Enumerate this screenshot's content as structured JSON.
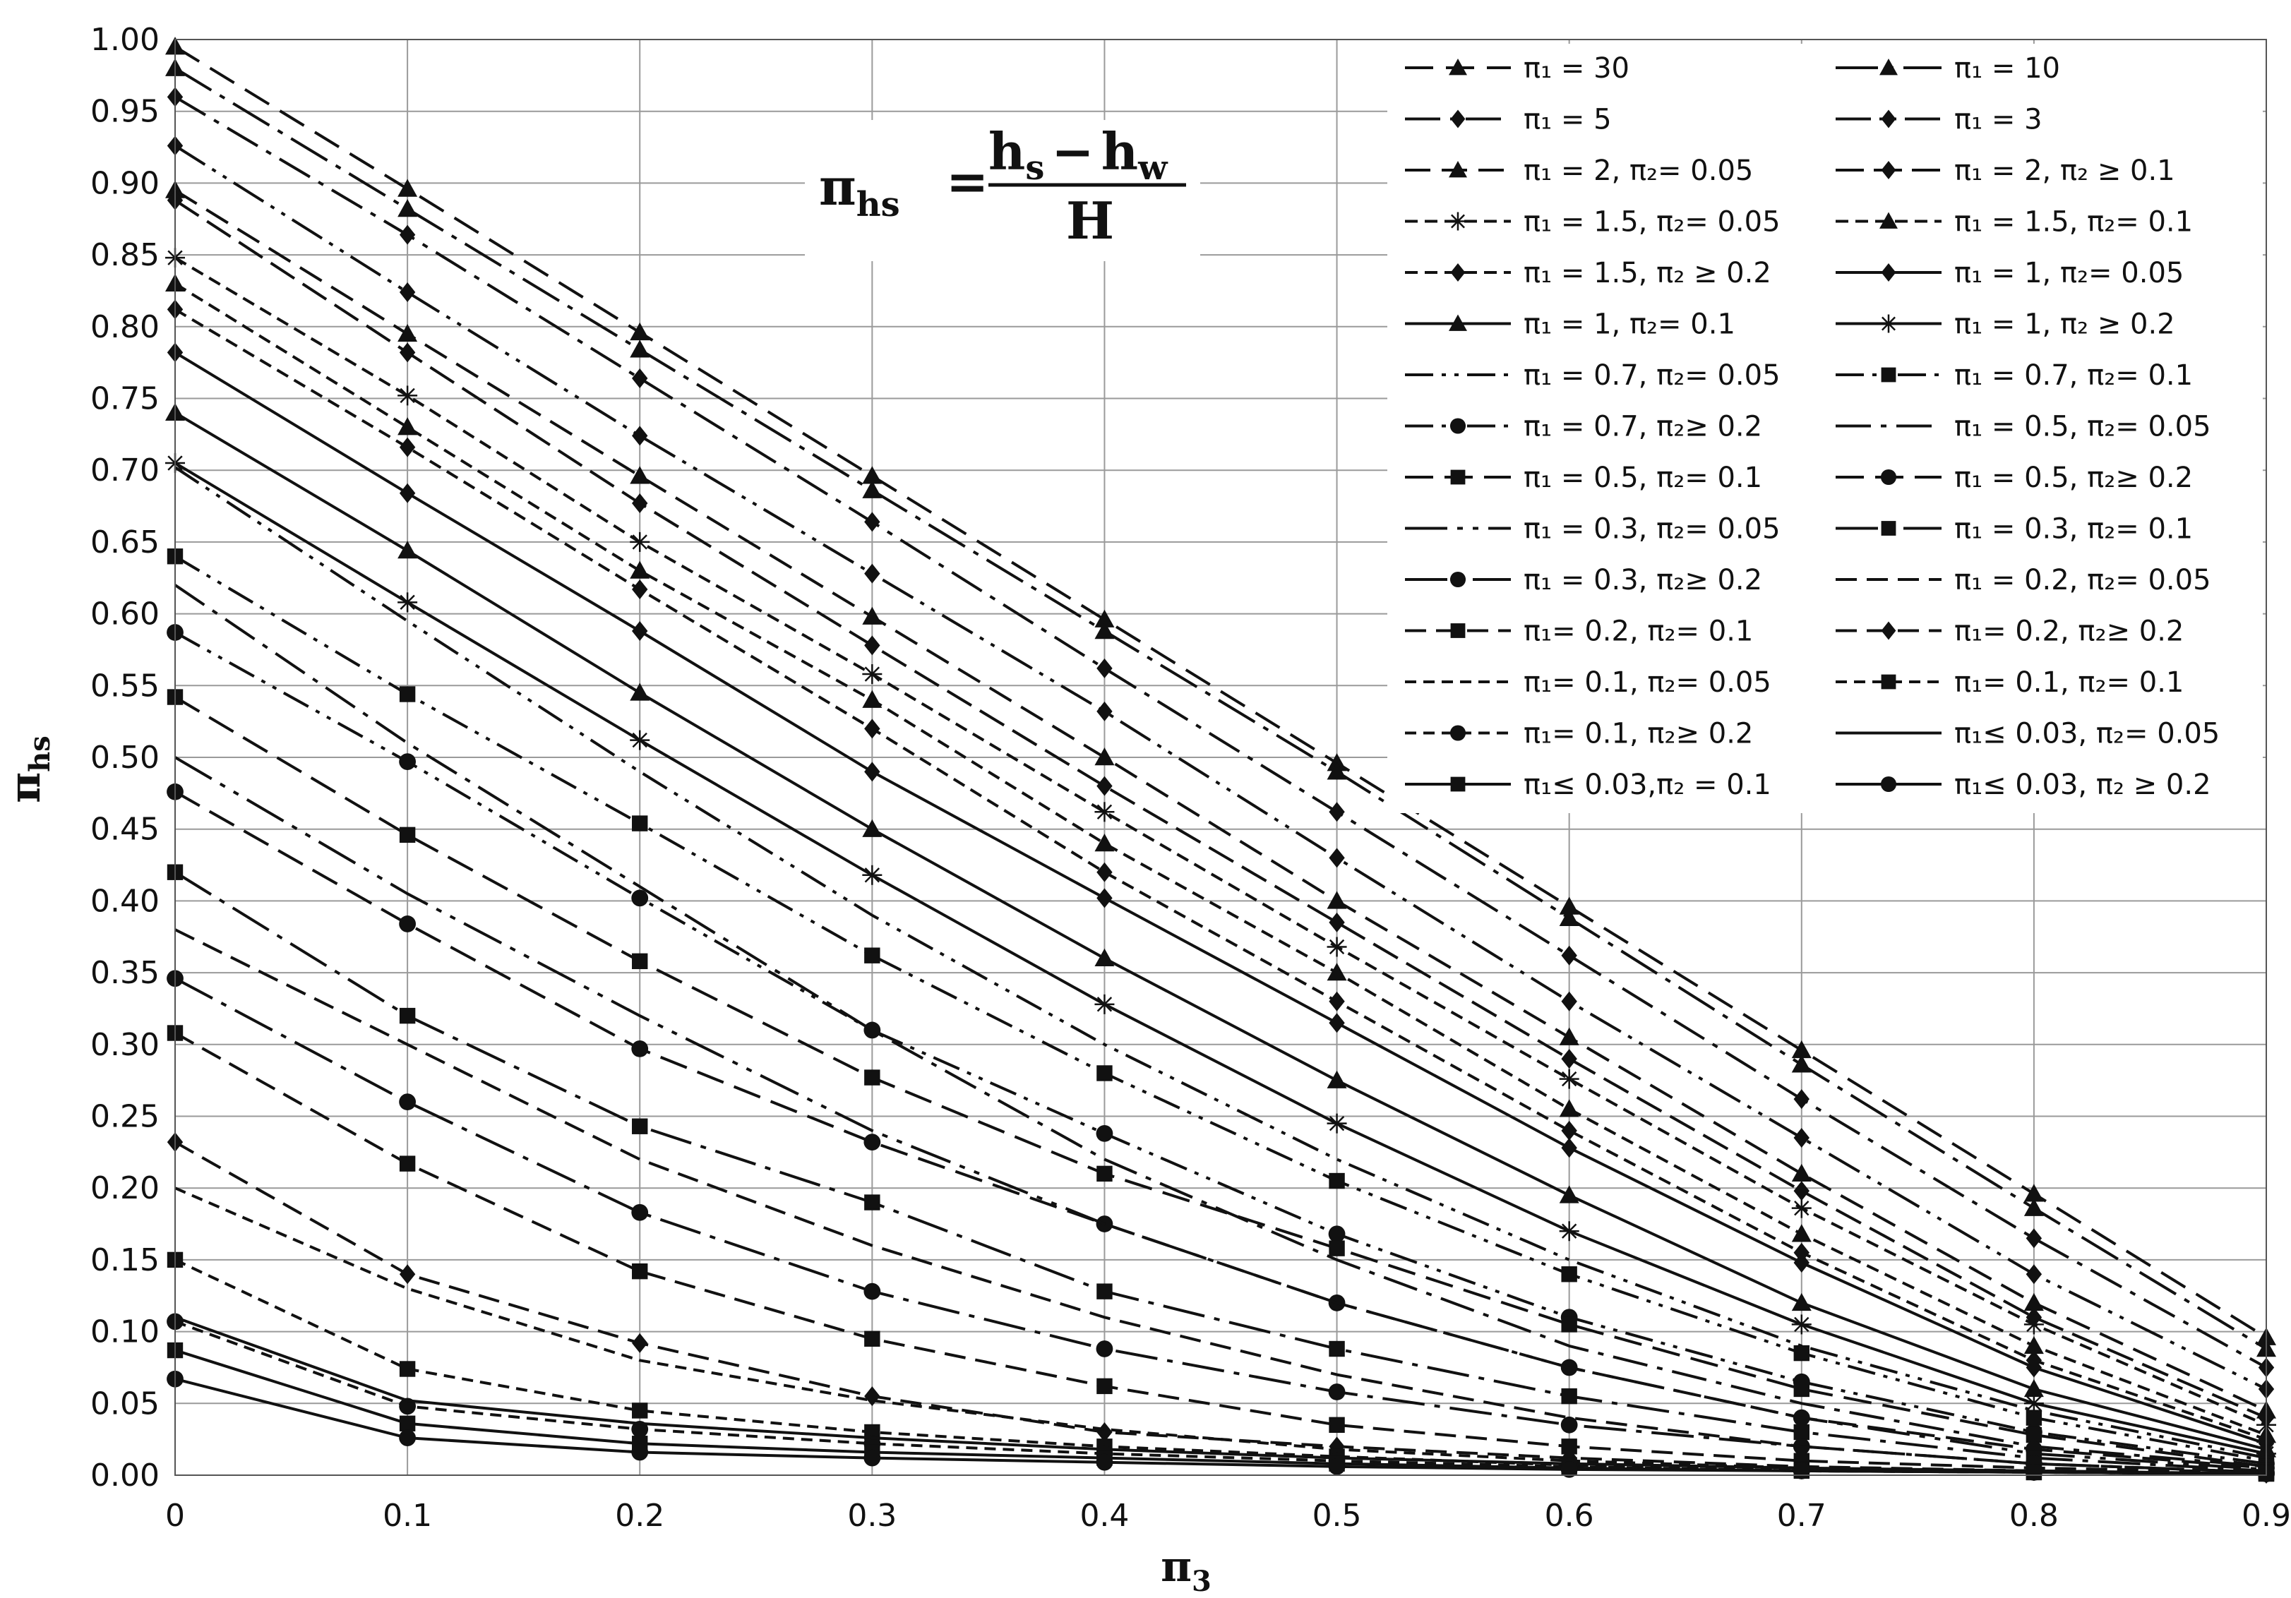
{
  "chart_data": {
    "type": "line",
    "title": "",
    "xlabel": "π3",
    "ylabel": "πhs",
    "xlim": [
      0,
      0.9
    ],
    "ylim": [
      0,
      1.0
    ],
    "x_ticks": [
      "0",
      "0.1",
      "0.2",
      "0.3",
      "0.4",
      "0.5",
      "0.6",
      "0.7",
      "0.8",
      "0.9"
    ],
    "y_ticks": [
      "0.00",
      "0.05",
      "0.10",
      "0.15",
      "0.20",
      "0.25",
      "0.30",
      "0.35",
      "0.40",
      "0.45",
      "0.50",
      "0.55",
      "0.60",
      "0.65",
      "0.70",
      "0.75",
      "0.80",
      "0.85",
      "0.90",
      "0.95",
      "1.00"
    ],
    "grid": true,
    "legend_position": "top-right",
    "annotation": {
      "lhs": "π",
      "lhs_sub": "hs",
      "eq": "=",
      "num_a": "h",
      "num_a_sub": "s",
      "minus": "−",
      "num_b": "h",
      "num_b_sub": "w",
      "den": "H"
    },
    "x": [
      0,
      0.1,
      0.2,
      0.3,
      0.4,
      0.5,
      0.6,
      0.7,
      0.8,
      0.9
    ],
    "series": [
      {
        "name": "π₁ = 30",
        "dash": "40 18",
        "marker": "triangle",
        "values": [
          0.995,
          0.896,
          0.796,
          0.696,
          0.596,
          0.496,
          0.396,
          0.296,
          0.196,
          0.096
        ]
      },
      {
        "name": "π₁ = 10",
        "dash": "60 14 8 14",
        "marker": "triangle",
        "values": [
          0.98,
          0.882,
          0.784,
          0.686,
          0.588,
          0.49,
          0.388,
          0.286,
          0.186,
          0.088
        ]
      },
      {
        "name": "π₁ = 5",
        "dash": "50 14 8 14",
        "marker": "diamond",
        "values": [
          0.96,
          0.864,
          0.764,
          0.664,
          0.562,
          0.462,
          0.362,
          0.262,
          0.165,
          0.075
        ]
      },
      {
        "name": "π₁ = 3",
        "dash": "50 12 6 12 6 12",
        "marker": "diamond",
        "values": [
          0.926,
          0.824,
          0.724,
          0.628,
          0.532,
          0.43,
          0.33,
          0.235,
          0.14,
          0.06
        ]
      },
      {
        "name": "π₁ = 2, π₂= 0.05",
        "dash": "36 16",
        "marker": "triangle",
        "values": [
          0.895,
          0.795,
          0.696,
          0.598,
          0.5,
          0.4,
          0.305,
          0.21,
          0.12,
          0.045
        ]
      },
      {
        "name": "π₁ = 2, π₂ ≥ 0.1",
        "dash": "40 14",
        "marker": "diamond",
        "values": [
          0.888,
          0.782,
          0.677,
          0.578,
          0.48,
          0.385,
          0.29,
          0.198,
          0.11,
          0.04
        ]
      },
      {
        "name": "π₁ = 1.5, π₂= 0.05",
        "dash": "18 10",
        "marker": "star",
        "values": [
          0.848,
          0.752,
          0.65,
          0.558,
          0.462,
          0.368,
          0.276,
          0.186,
          0.105,
          0.035
        ]
      },
      {
        "name": "π₁ = 1.5, π₂= 0.1",
        "dash": "18 10",
        "marker": "triangle",
        "values": [
          0.83,
          0.73,
          0.63,
          0.54,
          0.44,
          0.35,
          0.255,
          0.168,
          0.09,
          0.028
        ]
      },
      {
        "name": "π₁ = 1.5, π₂ ≥ 0.2",
        "dash": "18 10",
        "marker": "diamond",
        "values": [
          0.812,
          0.716,
          0.617,
          0.52,
          0.42,
          0.33,
          0.24,
          0.155,
          0.08,
          0.025
        ]
      },
      {
        "name": "π₁ = 1, π₂= 0.05",
        "dash": "none",
        "marker": "diamond",
        "values": [
          0.782,
          0.684,
          0.588,
          0.49,
          0.402,
          0.315,
          0.228,
          0.148,
          0.075,
          0.022
        ]
      },
      {
        "name": "π₁ = 1, π₂= 0.1",
        "dash": "none",
        "marker": "triangle",
        "values": [
          0.74,
          0.644,
          0.545,
          0.45,
          0.36,
          0.275,
          0.195,
          0.12,
          0.06,
          0.018
        ]
      },
      {
        "name": "π₁ = 1, π₂ ≥ 0.2",
        "dash": "none",
        "marker": "star",
        "values": [
          0.705,
          0.608,
          0.512,
          0.418,
          0.328,
          0.245,
          0.17,
          0.105,
          0.05,
          0.015
        ]
      },
      {
        "name": "π₁ = 0.7, π₂= 0.05",
        "dash": "40 12 6 12 6 12",
        "marker": "none",
        "values": [
          0.702,
          0.595,
          0.49,
          0.39,
          0.3,
          0.22,
          0.15,
          0.09,
          0.045,
          0.012
        ]
      },
      {
        "name": "π₁ = 0.7, π₂= 0.1",
        "dash": "40 12 6 12 6 12",
        "marker": "square",
        "values": [
          0.64,
          0.544,
          0.454,
          0.362,
          0.28,
          0.205,
          0.14,
          0.085,
          0.04,
          0.01
        ]
      },
      {
        "name": "π₁ = 0.7, π₂≥ 0.2",
        "dash": "40 12 6 12 6 12",
        "marker": "circle",
        "values": [
          0.587,
          0.497,
          0.402,
          0.31,
          0.238,
          0.168,
          0.11,
          0.065,
          0.03,
          0.008
        ]
      },
      {
        "name": "π₁ = 0.5, π₂= 0.05",
        "dash": "50 14 8 14",
        "marker": "none",
        "values": [
          0.62,
          0.51,
          0.41,
          0.31,
          0.22,
          0.15,
          0.09,
          0.05,
          0.02,
          0.006
        ]
      },
      {
        "name": "π₁ = 0.5, π₂= 0.1",
        "dash": "40 16",
        "marker": "square",
        "values": [
          0.542,
          0.446,
          0.358,
          0.277,
          0.21,
          0.158,
          0.105,
          0.06,
          0.028,
          0.006
        ]
      },
      {
        "name": "π₁ = 0.5, π₂≥ 0.2",
        "dash": "40 16",
        "marker": "circle",
        "values": [
          0.476,
          0.384,
          0.297,
          0.232,
          0.175,
          0.12,
          0.075,
          0.04,
          0.018,
          0.005
        ]
      },
      {
        "name": "π₁ = 0.3, π₂= 0.05",
        "dash": "60 14 8 14 8 14",
        "marker": "none",
        "values": [
          0.5,
          0.405,
          0.32,
          0.24,
          0.175,
          0.12,
          0.075,
          0.04,
          0.015,
          0.004
        ]
      },
      {
        "name": "π₁ = 0.3, π₂= 0.1",
        "dash": "60 14 8 14",
        "marker": "square",
        "values": [
          0.42,
          0.32,
          0.243,
          0.19,
          0.128,
          0.088,
          0.055,
          0.03,
          0.012,
          0.003
        ]
      },
      {
        "name": "π₁ = 0.3, π₂≥ 0.2",
        "dash": "60 14 8 14",
        "marker": "circle",
        "values": [
          0.346,
          0.26,
          0.183,
          0.128,
          0.088,
          0.058,
          0.035,
          0.02,
          0.008,
          0.002
        ]
      },
      {
        "name": "π₁ = 0.2,  π₂= 0.05",
        "dash": "30 14",
        "marker": "none",
        "values": [
          0.38,
          0.3,
          0.22,
          0.16,
          0.11,
          0.07,
          0.04,
          0.02,
          0.008,
          0.002
        ]
      },
      {
        "name": "π₁= 0.2, π₂= 0.1",
        "dash": "30 14",
        "marker": "square",
        "values": [
          0.308,
          0.217,
          0.142,
          0.095,
          0.062,
          0.035,
          0.02,
          0.01,
          0.005,
          0.002
        ]
      },
      {
        "name": "π₁= 0.2, π₂≥ 0.2",
        "dash": "30 14",
        "marker": "diamond",
        "values": [
          0.232,
          0.14,
          0.092,
          0.055,
          0.03,
          0.02,
          0.012,
          0.006,
          0.003,
          0.001
        ]
      },
      {
        "name": "π₁= 0.1, π₂= 0.05",
        "dash": "16 10",
        "marker": "none",
        "values": [
          0.2,
          0.13,
          0.08,
          0.052,
          0.032,
          0.018,
          0.01,
          0.005,
          0.002,
          0.001
        ]
      },
      {
        "name": "π₁= 0.1, π₂= 0.1",
        "dash": "16 10",
        "marker": "square",
        "values": [
          0.15,
          0.074,
          0.045,
          0.03,
          0.02,
          0.013,
          0.007,
          0.004,
          0.002,
          0.001
        ]
      },
      {
        "name": "π₁= 0.1, π₂≥ 0.2",
        "dash": "16 10",
        "marker": "circle",
        "values": [
          0.107,
          0.048,
          0.032,
          0.022,
          0.015,
          0.01,
          0.006,
          0.003,
          0.002,
          0.001
        ]
      },
      {
        "name": "π₁≤ 0.03, π₂= 0.05",
        "dash": "none",
        "marker": "none",
        "values": [
          0.11,
          0.052,
          0.036,
          0.026,
          0.018,
          0.012,
          0.008,
          0.005,
          0.003,
          0.001
        ]
      },
      {
        "name": "π₁≤ 0.03,π₂ = 0.1",
        "dash": "none",
        "marker": "square",
        "values": [
          0.087,
          0.036,
          0.022,
          0.016,
          0.012,
          0.008,
          0.005,
          0.003,
          0.002,
          0.001
        ]
      },
      {
        "name": "π₁≤ 0.03, π₂ ≥ 0.2",
        "dash": "none",
        "marker": "circle",
        "values": [
          0.067,
          0.026,
          0.016,
          0.012,
          0.009,
          0.006,
          0.004,
          0.003,
          0.002,
          0.001
        ]
      }
    ]
  }
}
